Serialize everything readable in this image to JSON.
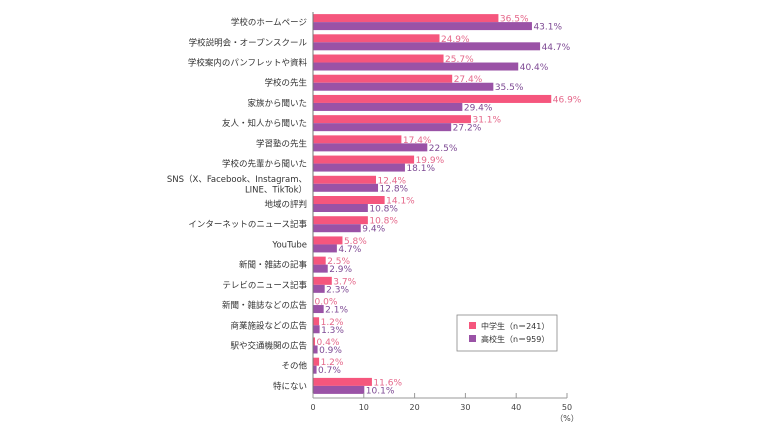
{
  "chart_data": {
    "type": "bar",
    "orientation": "horizontal",
    "categories": [
      "学校のホームページ",
      "学校説明会・オープンスクール",
      "学校案内のパンフレットや資料",
      "学校の先生",
      "家族から聞いた",
      "友人・知人から聞いた",
      "学習塾の先生",
      "学校の先輩から聞いた",
      "SNS（X、Facebook、Instagram、|LINE、TikTok）",
      "地域の評判",
      "インターネットのニュース記事",
      "YouTube",
      "新聞・雑誌の記事",
      "テレビのニュース記事",
      "新聞・雑誌などの広告",
      "商業施設などの広告",
      "駅や交通機関の広告",
      "その他",
      "特にない"
    ],
    "series": [
      {
        "name": "中学生（n＝241）",
        "color": "#f5567d",
        "values": [
          36.5,
          24.9,
          25.7,
          27.4,
          46.9,
          31.1,
          17.4,
          19.9,
          12.4,
          14.1,
          10.8,
          5.8,
          2.5,
          3.7,
          0.0,
          1.2,
          0.4,
          1.2,
          11.6
        ],
        "labels": [
          "36.5%",
          "24.9%",
          "25.7%",
          "27.4%",
          "46.9%",
          "31.1%",
          "17.4%",
          "19.9%",
          "12.4%",
          "14.1%",
          "10.8%",
          "5.8%",
          "2.5%",
          "3.7%",
          "0.0%",
          "1.2%",
          "0.4%",
          "1.2%",
          "11.6%"
        ]
      },
      {
        "name": "高校生（n＝959）",
        "color": "#9a52a6",
        "values": [
          43.1,
          44.7,
          40.4,
          35.5,
          29.4,
          27.2,
          22.5,
          18.1,
          12.8,
          10.8,
          9.4,
          4.7,
          2.9,
          2.3,
          2.1,
          1.3,
          0.9,
          0.7,
          10.1
        ],
        "labels": [
          "43.1%",
          "44.7%",
          "40.4%",
          "35.5%",
          "29.4%",
          "27.2%",
          "22.5%",
          "18.1%",
          "12.8%",
          "10.8%",
          "9.4%",
          "4.7%",
          "2.9%",
          "2.3%",
          "2.1%",
          "1.3%",
          "0.9%",
          "0.7%",
          "10.1%"
        ]
      }
    ],
    "xlim": [
      0,
      50
    ],
    "xticks": [
      "0",
      "10",
      "20",
      "30",
      "40",
      "50"
    ],
    "xunit": "（%）",
    "title": "",
    "xlabel": "",
    "ylabel": "",
    "grid": false,
    "legend": "bottom-right"
  }
}
